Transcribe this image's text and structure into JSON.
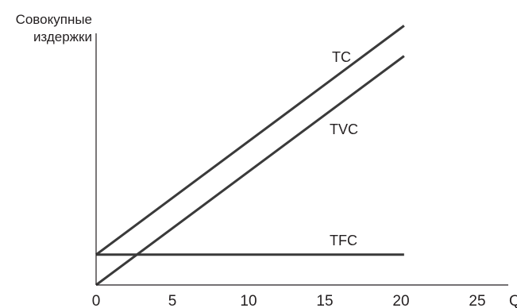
{
  "chart_data": {
    "type": "line",
    "title": "",
    "ylabel_lines": [
      "Совокупные",
      "издержки"
    ],
    "xlabel": "Q",
    "xlim": [
      0,
      27
    ],
    "ylim": [
      0,
      35
    ],
    "x_ticks": [
      0,
      5,
      10,
      15,
      20,
      25
    ],
    "tick_labels": [
      "0",
      "5",
      "10",
      "15",
      "20",
      "25"
    ],
    "grid": false,
    "colors": {
      "line": "#3a3a3a",
      "axis": "#231f20",
      "text": "#231f20"
    },
    "series": [
      {
        "name": "TC",
        "x": [
          0,
          20.2
        ],
        "y": [
          4,
          34.2
        ]
      },
      {
        "name": "TVC",
        "x": [
          0,
          20.2
        ],
        "y": [
          0,
          30.2
        ]
      },
      {
        "name": "TFC",
        "x": [
          0,
          20.2
        ],
        "y": [
          4,
          4
        ]
      }
    ]
  }
}
